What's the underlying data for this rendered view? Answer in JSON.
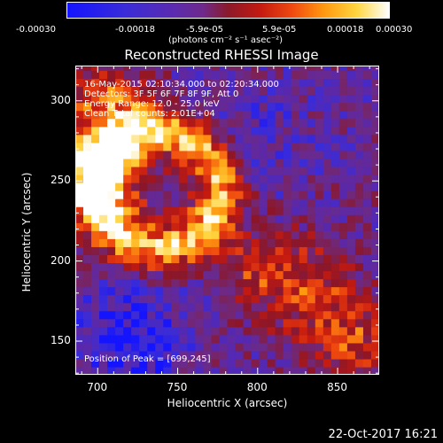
{
  "colorbar": {
    "tick_labels": [
      "-0.00030",
      "-0.00018",
      "-5.9e-05",
      "5.9e-05",
      "0.00018",
      "0.00030"
    ],
    "units": "(photons cm⁻² s⁻¹ asec⁻²)",
    "range": [
      -0.0003,
      0.0003
    ],
    "colors": [
      "#1414ff",
      "#6e2a8c",
      "#8b1a2a",
      "#f04a10",
      "#ffd640",
      "#ffffff"
    ]
  },
  "chart_data": {
    "type": "heatmap",
    "title": "Reconstructed RHESSI Image",
    "xlabel": "Heliocentric X (arcsec)",
    "ylabel": "Heliocentric Y (arcsec)",
    "xlim": [
      686,
      876
    ],
    "ylim": [
      129,
      322
    ],
    "xticks": [
      700,
      750,
      800,
      850
    ],
    "yticks": [
      150,
      200,
      250,
      300
    ],
    "annotations": {
      "time_range": "16-May-2015 02:10:34.000 to 02:20:34.000",
      "detectors": "Detectors: 3F 5F 6F 7F 8F 9F, Att 0",
      "energy_range": "Energy Range: 12.0 - 25.0 keV",
      "method": "Clean    Total counts: 2.01E+04",
      "peak": "Position of Peak = [699,245]"
    },
    "peak_position": [
      699,
      245
    ]
  },
  "footer": {
    "timestamp": "22-Oct-2017 16:21"
  }
}
